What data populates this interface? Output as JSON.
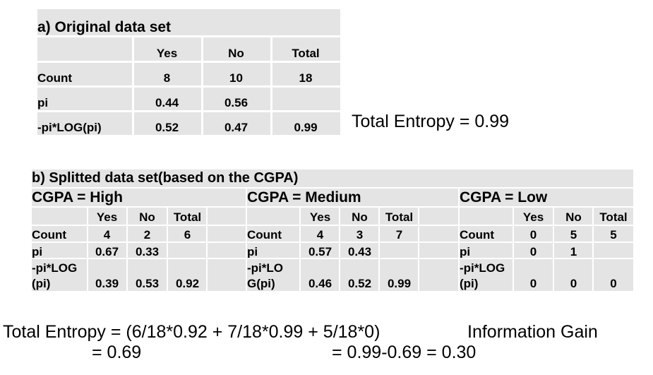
{
  "original": {
    "title": "a) Original data set",
    "headers": [
      "",
      "Yes",
      "No",
      "Total"
    ],
    "rows": [
      [
        "Count",
        "8",
        "10",
        "18"
      ],
      [
        "pi",
        "0.44",
        "0.56",
        ""
      ],
      [
        "-pi*LOG(pi)",
        "0.52",
        "0.47",
        "0.99"
      ]
    ],
    "entropy_text": "Total Entropy = 0.99"
  },
  "split": {
    "title": "b) Splitted data set(based on the CGPA)",
    "blocks": [
      {
        "name": "CGPA = High",
        "headers": [
          "",
          "Yes",
          "No",
          "Total",
          ""
        ],
        "rows": [
          [
            "Count",
            "4",
            "2",
            "6"
          ],
          [
            "pi",
            "0.67",
            "0.33",
            ""
          ],
          [
            "-pi*LOG\n(pi)",
            "0.39",
            "0.53",
            "0.92"
          ]
        ]
      },
      {
        "name": "CGPA = Medium",
        "headers": [
          "",
          "Yes",
          "No",
          "Total",
          ""
        ],
        "rows": [
          [
            "Count",
            "4",
            "3",
            "7"
          ],
          [
            "pi",
            "0.57",
            "0.43",
            ""
          ],
          [
            "-pi*LO\nG(pi)",
            "0.46",
            "0.52",
            "0.99"
          ]
        ]
      },
      {
        "name": "CGPA = Low",
        "headers": [
          "",
          "Yes",
          "No",
          "Total"
        ],
        "rows": [
          [
            "Count",
            "0",
            "5",
            "5"
          ],
          [
            "pi",
            "0",
            "1",
            ""
          ],
          [
            "-pi*LOG\n(pi)",
            "0",
            "0",
            "0"
          ]
        ]
      }
    ]
  },
  "formulas": {
    "entropy_line1": "Total Entropy = (6/18*0.92 + 7/18*0.99 + 5/18*0)",
    "entropy_line2": "= 0.69",
    "gain_line1": "Information Gain",
    "gain_line2": "= 0.99-0.69 = 0.30"
  }
}
